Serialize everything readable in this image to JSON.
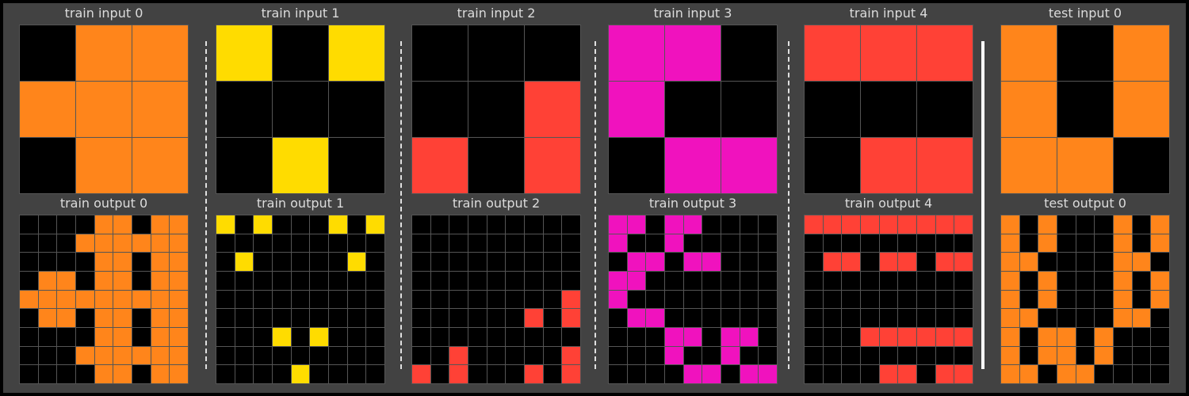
{
  "palette": {
    "0": "#000000",
    "2": "#ff4136",
    "4": "#ffdc00",
    "6": "#f012be",
    "7": "#ff851b"
  },
  "panels": [
    {
      "label": "train input 0",
      "grid": [
        [
          0,
          7,
          7
        ],
        [
          7,
          7,
          7
        ],
        [
          0,
          7,
          7
        ]
      ]
    },
    {
      "label": "train input 1",
      "grid": [
        [
          4,
          0,
          4
        ],
        [
          0,
          0,
          0
        ],
        [
          0,
          4,
          0
        ]
      ]
    },
    {
      "label": "train input 2",
      "grid": [
        [
          0,
          0,
          0
        ],
        [
          0,
          0,
          2
        ],
        [
          2,
          0,
          2
        ]
      ]
    },
    {
      "label": "train input 3",
      "grid": [
        [
          6,
          6,
          0
        ],
        [
          6,
          0,
          0
        ],
        [
          0,
          6,
          6
        ]
      ]
    },
    {
      "label": "train input 4",
      "grid": [
        [
          2,
          2,
          2
        ],
        [
          0,
          0,
          0
        ],
        [
          0,
          2,
          2
        ]
      ]
    },
    {
      "label": "test input 0",
      "grid": [
        [
          7,
          0,
          7
        ],
        [
          7,
          0,
          7
        ],
        [
          7,
          7,
          0
        ]
      ]
    },
    {
      "label": "train output 0",
      "grid": [
        [
          0,
          0,
          0,
          0,
          7,
          7,
          0,
          7,
          7
        ],
        [
          0,
          0,
          0,
          7,
          7,
          7,
          7,
          7,
          7
        ],
        [
          0,
          0,
          0,
          0,
          7,
          7,
          0,
          7,
          7
        ],
        [
          0,
          7,
          7,
          0,
          7,
          7,
          0,
          7,
          7
        ],
        [
          7,
          7,
          7,
          7,
          7,
          7,
          7,
          7,
          7
        ],
        [
          0,
          7,
          7,
          0,
          7,
          7,
          0,
          7,
          7
        ],
        [
          0,
          0,
          0,
          0,
          7,
          7,
          0,
          7,
          7
        ],
        [
          0,
          0,
          0,
          7,
          7,
          7,
          7,
          7,
          7
        ],
        [
          0,
          0,
          0,
          0,
          7,
          7,
          0,
          7,
          7
        ]
      ]
    },
    {
      "label": "train output 1",
      "grid": [
        [
          4,
          0,
          4,
          0,
          0,
          0,
          4,
          0,
          4
        ],
        [
          0,
          0,
          0,
          0,
          0,
          0,
          0,
          0,
          0
        ],
        [
          0,
          4,
          0,
          0,
          0,
          0,
          0,
          4,
          0
        ],
        [
          0,
          0,
          0,
          0,
          0,
          0,
          0,
          0,
          0
        ],
        [
          0,
          0,
          0,
          0,
          0,
          0,
          0,
          0,
          0
        ],
        [
          0,
          0,
          0,
          0,
          0,
          0,
          0,
          0,
          0
        ],
        [
          0,
          0,
          0,
          4,
          0,
          4,
          0,
          0,
          0
        ],
        [
          0,
          0,
          0,
          0,
          0,
          0,
          0,
          0,
          0
        ],
        [
          0,
          0,
          0,
          0,
          4,
          0,
          0,
          0,
          0
        ]
      ]
    },
    {
      "label": "train output 2",
      "grid": [
        [
          0,
          0,
          0,
          0,
          0,
          0,
          0,
          0,
          0
        ],
        [
          0,
          0,
          0,
          0,
          0,
          0,
          0,
          0,
          0
        ],
        [
          0,
          0,
          0,
          0,
          0,
          0,
          0,
          0,
          0
        ],
        [
          0,
          0,
          0,
          0,
          0,
          0,
          0,
          0,
          0
        ],
        [
          0,
          0,
          0,
          0,
          0,
          0,
          0,
          0,
          2
        ],
        [
          0,
          0,
          0,
          0,
          0,
          0,
          2,
          0,
          2
        ],
        [
          0,
          0,
          0,
          0,
          0,
          0,
          0,
          0,
          0
        ],
        [
          0,
          0,
          2,
          0,
          0,
          0,
          0,
          0,
          2
        ],
        [
          2,
          0,
          2,
          0,
          0,
          0,
          2,
          0,
          2
        ]
      ]
    },
    {
      "label": "train output 3",
      "grid": [
        [
          6,
          6,
          0,
          6,
          6,
          0,
          0,
          0,
          0
        ],
        [
          6,
          0,
          0,
          6,
          0,
          0,
          0,
          0,
          0
        ],
        [
          0,
          6,
          6,
          0,
          6,
          6,
          0,
          0,
          0
        ],
        [
          6,
          6,
          0,
          0,
          0,
          0,
          0,
          0,
          0
        ],
        [
          6,
          0,
          0,
          0,
          0,
          0,
          0,
          0,
          0
        ],
        [
          0,
          6,
          6,
          0,
          0,
          0,
          0,
          0,
          0
        ],
        [
          0,
          0,
          0,
          6,
          6,
          0,
          6,
          6,
          0
        ],
        [
          0,
          0,
          0,
          6,
          0,
          0,
          6,
          0,
          0
        ],
        [
          0,
          0,
          0,
          0,
          6,
          6,
          0,
          6,
          6
        ]
      ]
    },
    {
      "label": "train output 4",
      "grid": [
        [
          2,
          2,
          2,
          2,
          2,
          2,
          2,
          2,
          2
        ],
        [
          0,
          0,
          0,
          0,
          0,
          0,
          0,
          0,
          0
        ],
        [
          0,
          2,
          2,
          0,
          2,
          2,
          0,
          2,
          2
        ],
        [
          0,
          0,
          0,
          0,
          0,
          0,
          0,
          0,
          0
        ],
        [
          0,
          0,
          0,
          0,
          0,
          0,
          0,
          0,
          0
        ],
        [
          0,
          0,
          0,
          0,
          0,
          0,
          0,
          0,
          0
        ],
        [
          0,
          0,
          0,
          2,
          2,
          2,
          2,
          2,
          2
        ],
        [
          0,
          0,
          0,
          0,
          0,
          0,
          0,
          0,
          0
        ],
        [
          0,
          0,
          0,
          0,
          2,
          2,
          0,
          2,
          2
        ]
      ]
    },
    {
      "label": "test output 0",
      "grid": [
        [
          7,
          0,
          7,
          0,
          0,
          0,
          7,
          0,
          7
        ],
        [
          7,
          0,
          7,
          0,
          0,
          0,
          7,
          0,
          7
        ],
        [
          7,
          7,
          0,
          0,
          0,
          0,
          7,
          7,
          0
        ],
        [
          7,
          0,
          7,
          0,
          0,
          0,
          7,
          0,
          7
        ],
        [
          7,
          0,
          7,
          0,
          0,
          0,
          7,
          0,
          7
        ],
        [
          7,
          7,
          0,
          0,
          0,
          0,
          7,
          7,
          0
        ],
        [
          7,
          0,
          7,
          7,
          0,
          7,
          0,
          0,
          0
        ],
        [
          7,
          0,
          7,
          7,
          0,
          7,
          0,
          0,
          0
        ],
        [
          7,
          7,
          0,
          7,
          7,
          0,
          0,
          0,
          0
        ]
      ]
    }
  ]
}
